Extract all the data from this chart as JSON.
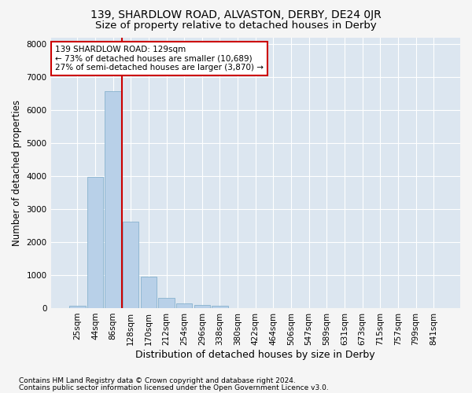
{
  "title_line1": "139, SHARDLOW ROAD, ALVASTON, DERBY, DE24 0JR",
  "title_line2": "Size of property relative to detached houses in Derby",
  "xlabel": "Distribution of detached houses by size in Derby",
  "ylabel": "Number of detached properties",
  "footer_line1": "Contains HM Land Registry data © Crown copyright and database right 2024.",
  "footer_line2": "Contains public sector information licensed under the Open Government Licence v3.0.",
  "bar_categories": [
    "25sqm",
    "44sqm",
    "86sqm",
    "128sqm",
    "170sqm",
    "212sqm",
    "254sqm",
    "296sqm",
    "338sqm",
    "380sqm",
    "422sqm",
    "464sqm",
    "506sqm",
    "547sqm",
    "589sqm",
    "631sqm",
    "673sqm",
    "715sqm",
    "757sqm",
    "799sqm",
    "841sqm"
  ],
  "bar_values": [
    80,
    3980,
    6580,
    2620,
    960,
    310,
    130,
    100,
    80,
    0,
    0,
    0,
    0,
    0,
    0,
    0,
    0,
    0,
    0,
    0,
    0
  ],
  "bar_color": "#b8d0e8",
  "bar_edge_color": "#7aaac8",
  "background_color": "#dce6f0",
  "grid_color": "#ffffff",
  "ylim": [
    0,
    8200
  ],
  "yticks": [
    0,
    1000,
    2000,
    3000,
    4000,
    5000,
    6000,
    7000,
    8000
  ],
  "property_line_x": 2.5,
  "property_line_color": "#cc0000",
  "annotation_text": "139 SHARDLOW ROAD: 129sqm\n← 73% of detached houses are smaller (10,689)\n27% of semi-detached houses are larger (3,870) →",
  "annotation_box_color": "#ffffff",
  "annotation_box_edge": "#cc0000",
  "title_fontsize": 10,
  "subtitle_fontsize": 9.5,
  "xlabel_fontsize": 9,
  "ylabel_fontsize": 8.5,
  "tick_fontsize": 7.5,
  "footer_fontsize": 6.5,
  "annotation_fontsize": 7.5
}
